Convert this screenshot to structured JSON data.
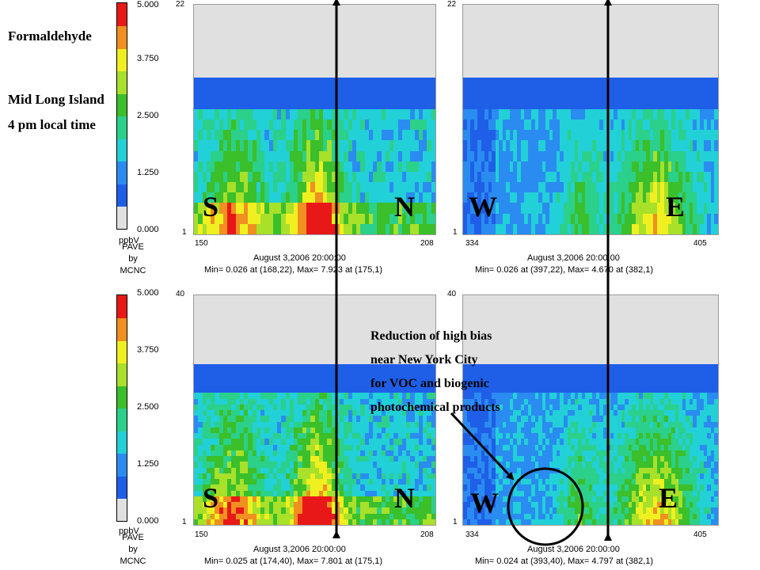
{
  "titles": {
    "species": "Formaldehyde",
    "location": "Mid Long Island",
    "time": "4 pm local time"
  },
  "colorbar": {
    "labels": [
      "5.000",
      "3.750",
      "2.500",
      "1.250",
      "0.000"
    ],
    "unit": "ppbV",
    "credit_lines": [
      "PAVE",
      "by",
      "MCNC"
    ],
    "colors": [
      "#e0e0e0",
      "#1f5fe8",
      "#2a8cf0",
      "#22d0d8",
      "#2bd08a",
      "#3bbf2a",
      "#a8e02a",
      "#f0f020",
      "#f09020",
      "#e81818"
    ]
  },
  "panels": {
    "top_left": {
      "y_top": "22",
      "y_bottom": "1",
      "x_left": "150",
      "x_right": "208",
      "date": "August 3,2006 20:00:00",
      "minmax": "Min=  0.026 at (168,22), Max=  7.923 at (175,1)",
      "dir_left": "S",
      "dir_right": "N"
    },
    "top_right": {
      "y_top": "22",
      "y_bottom": "1",
      "x_left": "334",
      "x_right": "405",
      "date": "August 3,2006 20:00:00",
      "minmax": "Min=  0.026 at (397,22), Max=  4.670 at (382,1)",
      "dir_left": "W",
      "dir_right": "E"
    },
    "bottom_left": {
      "y_top": "40",
      "y_bottom": "1",
      "x_left": "150",
      "x_right": "208",
      "date": "August 3,2006 20:00:00",
      "minmax": "Min=  0.025 at (174,40), Max=  7.801 at (175,1)",
      "dir_left": "S",
      "dir_right": "N"
    },
    "bottom_right": {
      "y_top": "40",
      "y_bottom": "1",
      "x_left": "334",
      "x_right": "405",
      "date": "August 3,2006 20:00:00",
      "minmax": "Min=  0.024 at (393,40), Max=  4.797 at (382,1)",
      "dir_left": "W",
      "dir_right": "E"
    }
  },
  "annotation": {
    "lines": [
      "Reduction of high bias",
      "near New York City",
      "for VOC and biogenic",
      "photochemical products"
    ]
  }
}
